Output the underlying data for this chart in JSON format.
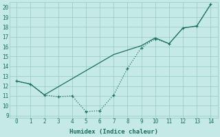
{
  "xlabel": "Humidex (Indice chaleur)",
  "xlim_min": -0.5,
  "xlim_max": 14.5,
  "ylim_min": 8.8,
  "ylim_max": 20.5,
  "yticks": [
    9,
    10,
    11,
    12,
    13,
    14,
    15,
    16,
    17,
    18,
    19,
    20
  ],
  "xticks": [
    0,
    1,
    2,
    3,
    4,
    5,
    6,
    7,
    8,
    9,
    10,
    11,
    12,
    13,
    14
  ],
  "bg_color": "#c5eae6",
  "grid_color": "#9dcdc8",
  "line_color": "#1a6b60",
  "line1_x": [
    0,
    1,
    2,
    3,
    4,
    5,
    6,
    7,
    8,
    9,
    10,
    11,
    12,
    13,
    14
  ],
  "line1_y": [
    12.5,
    12.2,
    11.1,
    10.9,
    11.0,
    9.4,
    9.5,
    11.1,
    13.8,
    15.9,
    16.8,
    16.3,
    17.9,
    18.1,
    20.3
  ],
  "line2_x": [
    0,
    1,
    2,
    7,
    9,
    10,
    11,
    12,
    13,
    14
  ],
  "line2_y": [
    12.5,
    12.2,
    11.1,
    15.2,
    16.1,
    16.9,
    16.3,
    17.9,
    18.1,
    20.3
  ],
  "xlabel_fontsize": 6.5,
  "tick_fontsize": 5.5,
  "linewidth": 0.9,
  "markersize": 3.5
}
